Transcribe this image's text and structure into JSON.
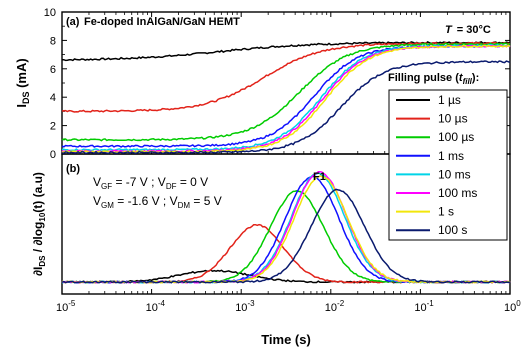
{
  "figure": {
    "xlabel": "Time (s)",
    "x_ticks": [
      "10-5",
      "10-4",
      "10-3",
      "10-2",
      "10-1",
      "100"
    ],
    "panel_a": {
      "tag": "(a)",
      "title": "Fe-doped InAlGaN/GaN HEMT",
      "temp_var": "T",
      "temp_val": "= 30°C",
      "ylabel_main": "I",
      "ylabel_sub": "DS",
      "ylabel_unit": " (mA)",
      "y_ticks": [
        "0",
        "2",
        "4",
        "6",
        "8",
        "10"
      ]
    },
    "panel_b": {
      "tag": "(b)",
      "peak_label": "F1",
      "ylabel": "∂IDS / ∂log10(t) (a.u)",
      "bias_line1": "VGF = -7 V ; VDF = 0 V",
      "bias_line2": "VGM = -1.6 V ; VDM = 5 V"
    },
    "legend_title": "Filling pulse (tfill):"
  },
  "colors": {
    "1 µs": "#000000",
    "10 µs": "#e2231a",
    "100 µs": "#00cc00",
    "1 ms": "#1010ff",
    "10 ms": "#00d4e8",
    "100 ms": "#ff00ff",
    "1 s": "#f2e60c",
    "100 s": "#0a1a6e"
  },
  "chart_data": [
    {
      "type": "line",
      "panel": "a",
      "x_scale": "log",
      "xlim": [
        1e-05,
        1
      ],
      "ylim": [
        0,
        10
      ],
      "xlabel": "Time (s)",
      "ylabel": "IDS (mA)",
      "series": [
        {
          "name": "1 µs",
          "i0": 6.6,
          "i1": 7.85,
          "t0": 0.0006,
          "w": 0.5
        },
        {
          "name": "10 µs",
          "i0": 3.0,
          "i1": 7.8,
          "t0": 0.0018,
          "w": 0.32
        },
        {
          "name": "100 µs",
          "i0": 1.0,
          "i1": 7.75,
          "t0": 0.0045,
          "w": 0.27
        },
        {
          "name": "1 ms",
          "i0": 0.55,
          "i1": 7.6,
          "t0": 0.0065,
          "w": 0.24
        },
        {
          "name": "10 ms",
          "i0": 0.3,
          "i1": 7.65,
          "t0": 0.0078,
          "w": 0.24
        },
        {
          "name": "100 ms",
          "i0": 0.2,
          "i1": 7.6,
          "t0": 0.0082,
          "w": 0.24
        },
        {
          "name": "1 s",
          "i0": 0.15,
          "i1": 7.6,
          "t0": 0.0088,
          "w": 0.24
        },
        {
          "name": "100 s",
          "i0": 0.1,
          "i1": 6.5,
          "t0": 0.013,
          "w": 0.24
        }
      ]
    },
    {
      "type": "line",
      "panel": "b",
      "x_scale": "log",
      "xlim": [
        1e-05,
        1
      ],
      "ylabel": "∂IDS / ∂log10(t) (a.u)",
      "series": [
        {
          "name": "1 µs",
          "t_peak": 0.0005,
          "amp": 0.37
        },
        {
          "name": "10 µs",
          "t_peak": 0.0015,
          "amp": 1.85
        },
        {
          "name": "100 µs",
          "t_peak": 0.0042,
          "amp": 2.95
        },
        {
          "name": "1 ms",
          "t_peak": 0.0062,
          "amp": 3.42
        },
        {
          "name": "10 ms",
          "t_peak": 0.0072,
          "amp": 3.52
        },
        {
          "name": "100 ms",
          "t_peak": 0.0075,
          "amp": 3.58
        },
        {
          "name": "1 s",
          "t_peak": 0.0078,
          "amp": 3.45
        },
        {
          "name": "100 s",
          "t_peak": 0.012,
          "amp": 3.0
        }
      ]
    }
  ]
}
